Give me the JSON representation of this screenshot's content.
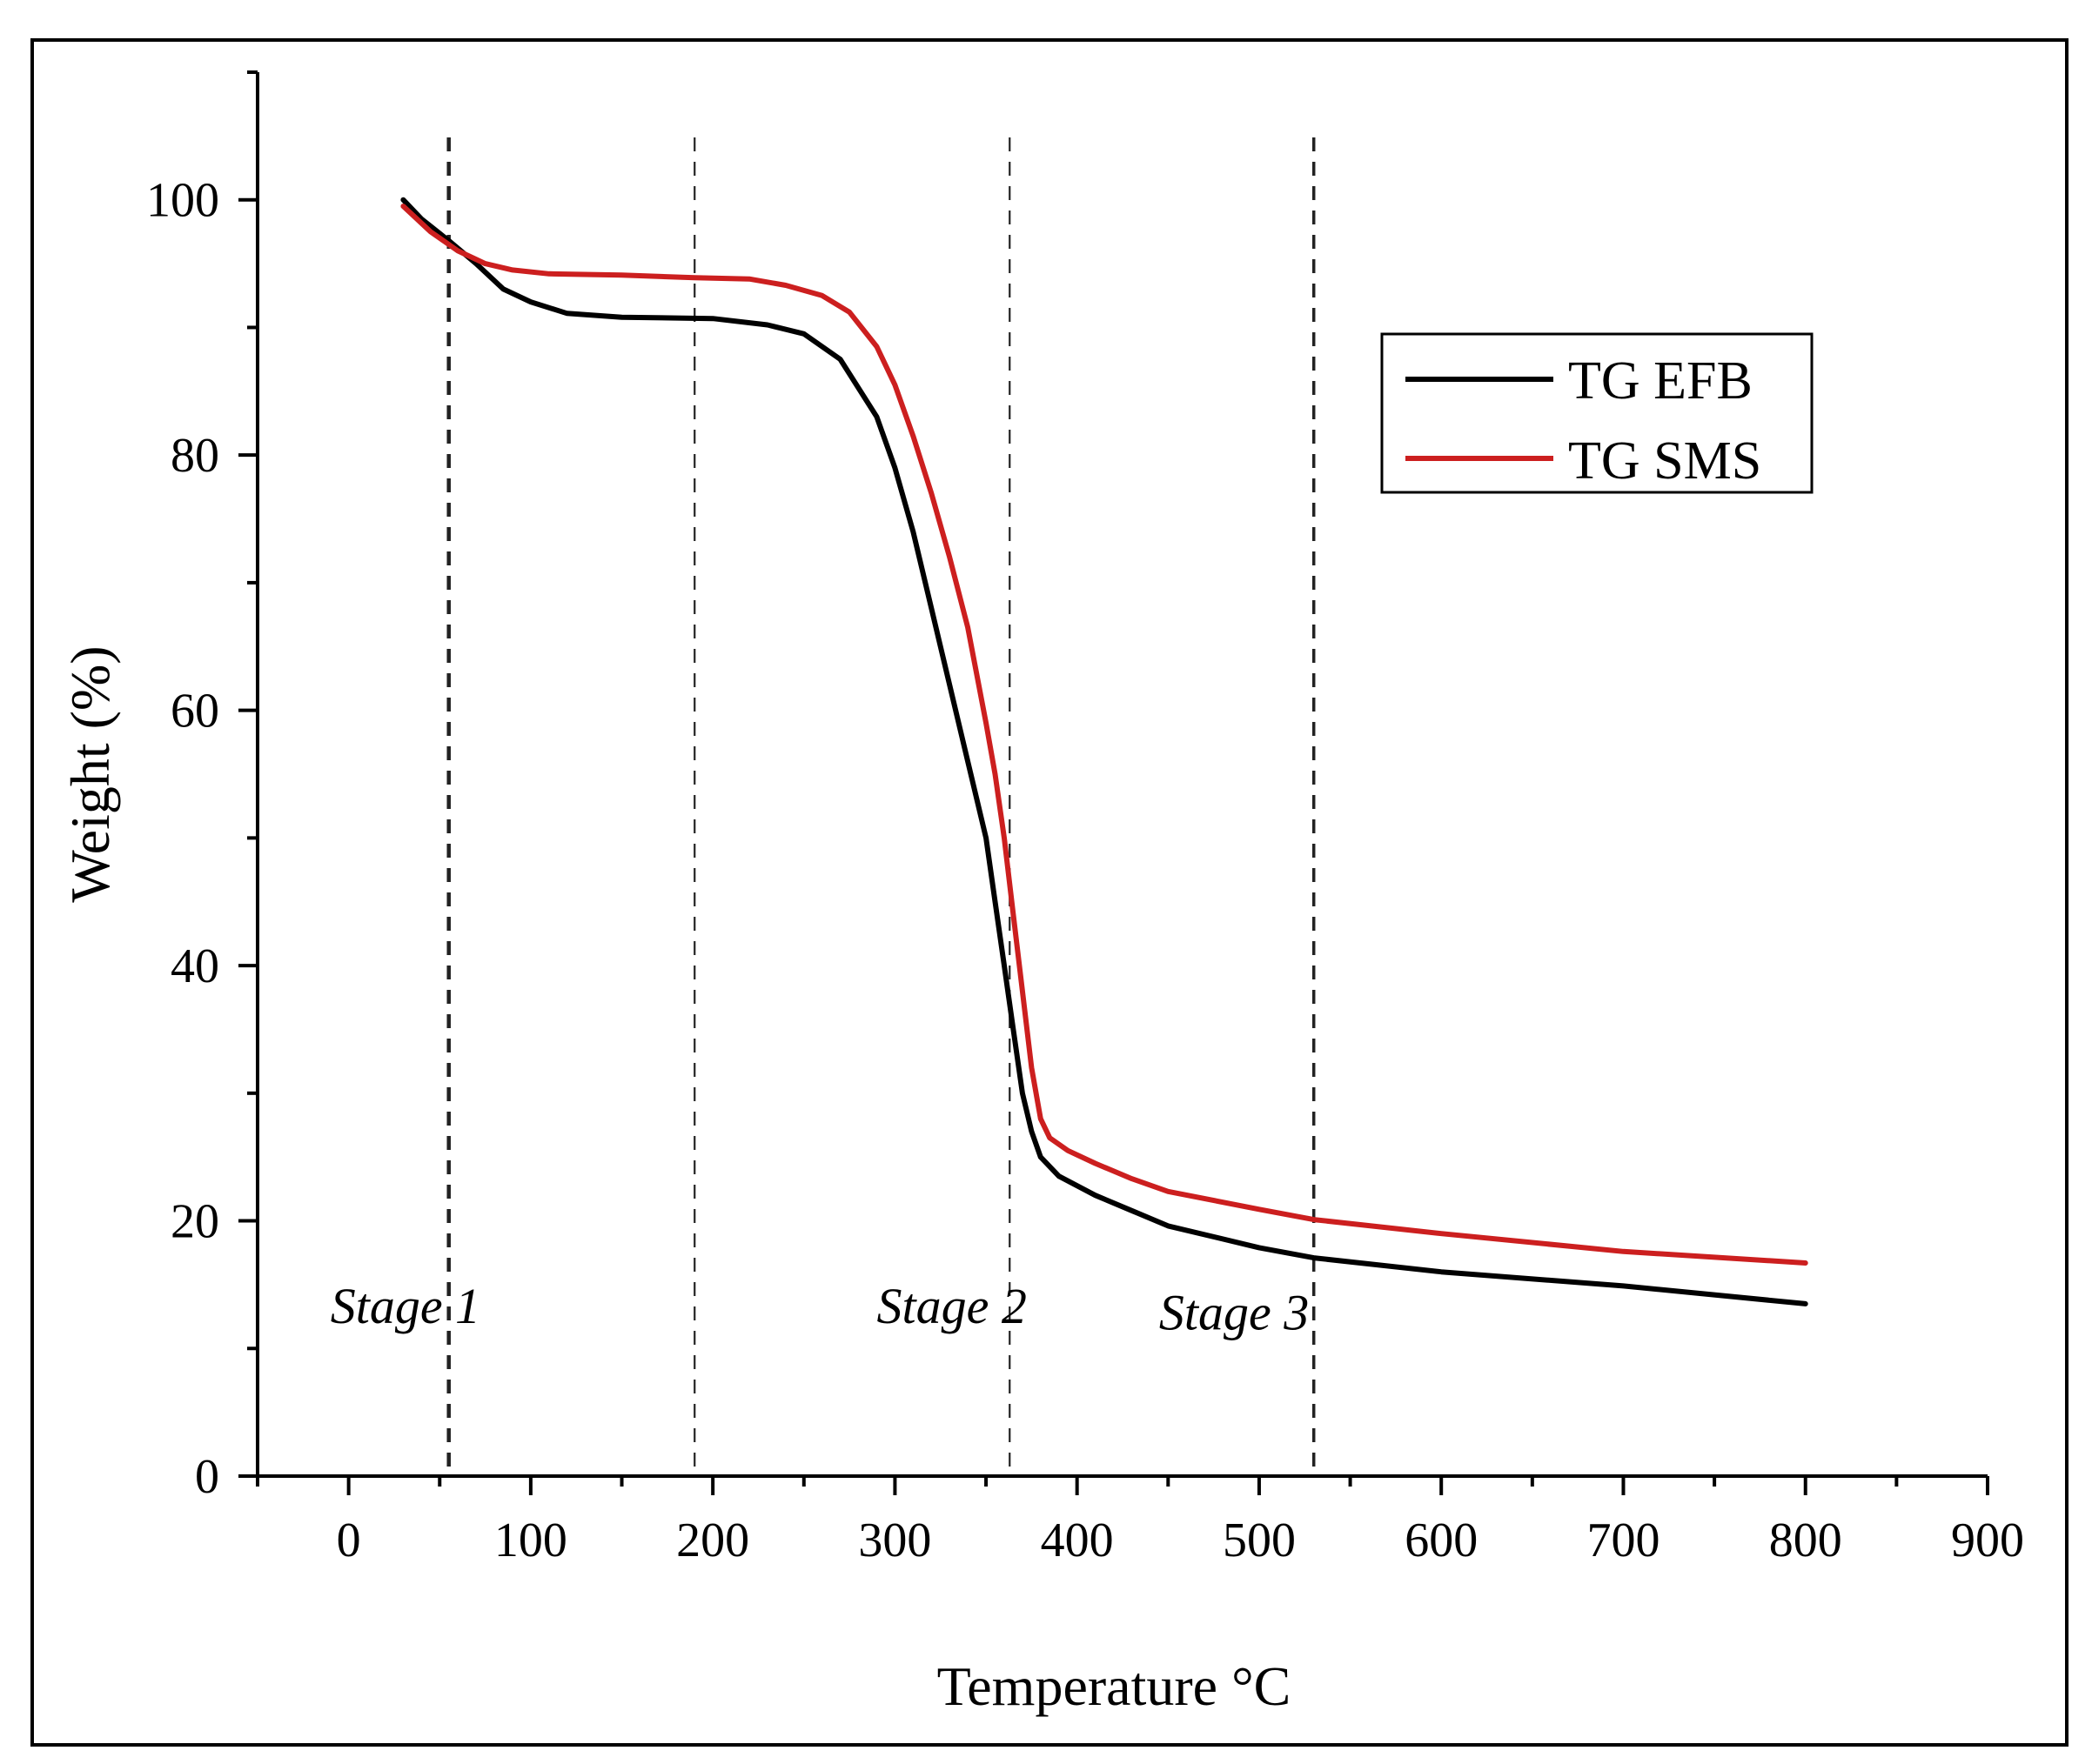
{
  "chart_data": {
    "type": "line",
    "title": "",
    "xlabel": "Temperature",
    "xlabel_unit": "°C",
    "ylabel": "Weight (%)",
    "xlim": [
      -50,
      900
    ],
    "ylim": [
      0,
      110
    ],
    "x_ticks": [
      0,
      100,
      200,
      300,
      400,
      500,
      600,
      700,
      800,
      900
    ],
    "y_ticks": [
      0,
      20,
      40,
      60,
      80,
      100
    ],
    "x_minor_step": 50,
    "y_minor_step": 10,
    "grid": false,
    "legend_position": "top-right",
    "series": [
      {
        "name": "TG EFB",
        "color": "#000000",
        "points": [
          [
            30,
            100
          ],
          [
            40,
            98.5
          ],
          [
            55,
            96.8
          ],
          [
            70,
            95
          ],
          [
            85,
            93
          ],
          [
            100,
            92
          ],
          [
            120,
            91.1
          ],
          [
            150,
            90.8
          ],
          [
            200,
            90.7
          ],
          [
            230,
            90.2
          ],
          [
            250,
            89.5
          ],
          [
            270,
            87.5
          ],
          [
            290,
            83
          ],
          [
            300,
            79
          ],
          [
            310,
            74
          ],
          [
            320,
            68
          ],
          [
            330,
            62
          ],
          [
            340,
            56
          ],
          [
            350,
            50
          ],
          [
            355,
            45
          ],
          [
            360,
            40
          ],
          [
            365,
            35
          ],
          [
            370,
            30
          ],
          [
            375,
            27
          ],
          [
            380,
            25
          ],
          [
            390,
            23.5
          ],
          [
            410,
            22
          ],
          [
            430,
            20.8
          ],
          [
            450,
            19.6
          ],
          [
            500,
            17.9
          ],
          [
            530,
            17.1
          ],
          [
            600,
            16
          ],
          [
            700,
            14.9
          ],
          [
            800,
            13.5
          ]
        ]
      },
      {
        "name": "TG SMS",
        "color": "#cc1f1f",
        "points": [
          [
            30,
            99.5
          ],
          [
            45,
            97.5
          ],
          [
            60,
            96
          ],
          [
            75,
            95
          ],
          [
            90,
            94.5
          ],
          [
            110,
            94.2
          ],
          [
            150,
            94.1
          ],
          [
            190,
            93.9
          ],
          [
            220,
            93.8
          ],
          [
            240,
            93.3
          ],
          [
            260,
            92.5
          ],
          [
            275,
            91.2
          ],
          [
            290,
            88.5
          ],
          [
            300,
            85.5
          ],
          [
            310,
            81.5
          ],
          [
            320,
            77
          ],
          [
            330,
            72
          ],
          [
            340,
            66.5
          ],
          [
            350,
            59
          ],
          [
            355,
            55
          ],
          [
            360,
            50
          ],
          [
            365,
            44
          ],
          [
            370,
            38
          ],
          [
            375,
            32
          ],
          [
            380,
            28
          ],
          [
            385,
            26.5
          ],
          [
            395,
            25.5
          ],
          [
            410,
            24.5
          ],
          [
            430,
            23.3
          ],
          [
            450,
            22.3
          ],
          [
            500,
            20.9
          ],
          [
            530,
            20.1
          ],
          [
            600,
            19
          ],
          [
            700,
            17.6
          ],
          [
            800,
            16.7
          ]
        ]
      }
    ],
    "reference_lines": [
      {
        "x": 55,
        "style": "dashed",
        "weight": "heavy"
      },
      {
        "x": 190,
        "style": "dashed",
        "weight": "light"
      },
      {
        "x": 363,
        "style": "dashed",
        "weight": "light"
      },
      {
        "x": 530,
        "style": "dashed",
        "weight": "medium"
      }
    ],
    "annotations": [
      {
        "text": "Stage 1",
        "x": -10,
        "y": 12
      },
      {
        "text": "Stage 2",
        "x": 290,
        "y": 12
      },
      {
        "text": "Stage 3",
        "x": 445,
        "y": 11.5
      }
    ]
  }
}
